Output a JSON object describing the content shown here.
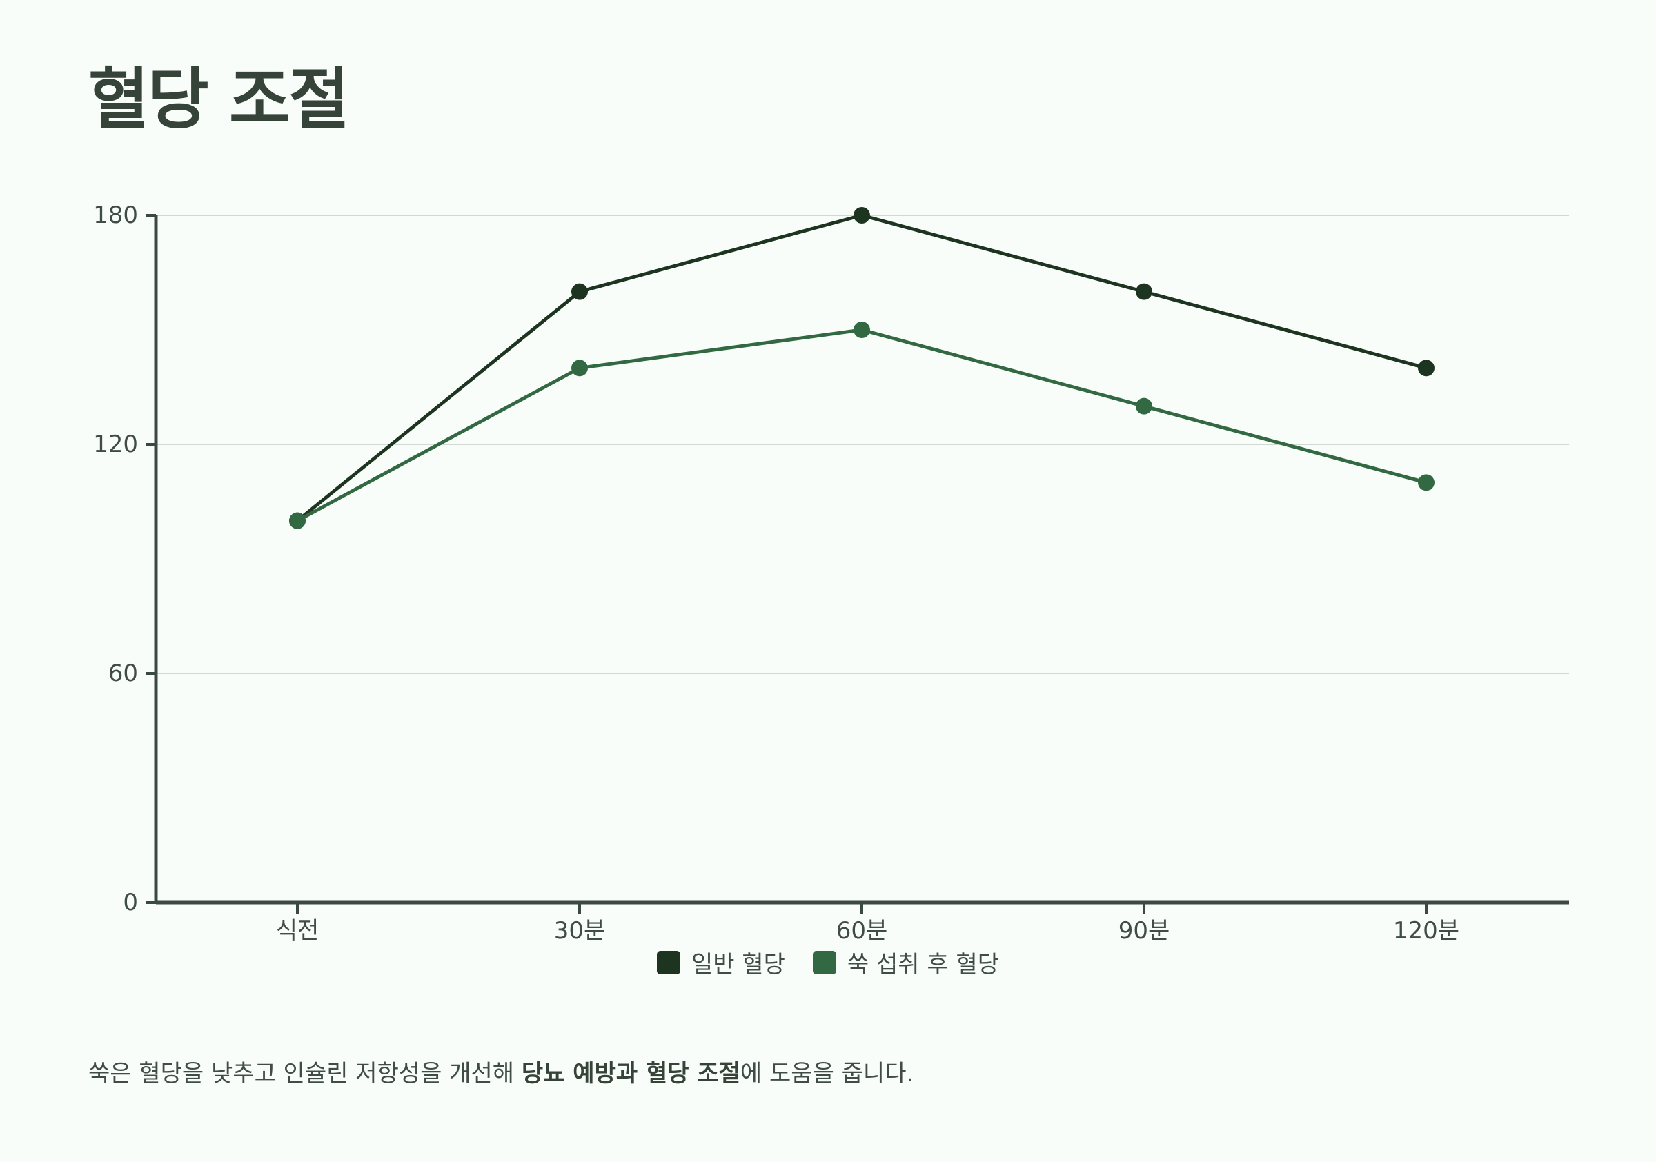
{
  "title": "혈당 조절",
  "chart_data": {
    "type": "line",
    "categories": [
      "식전",
      "30분",
      "60분",
      "90분",
      "120분"
    ],
    "series": [
      {
        "name": "일반 혈당",
        "values": [
          100,
          160,
          180,
          160,
          140
        ],
        "color": "#1c3420"
      },
      {
        "name": "쑥 섭취 후 혈당",
        "values": [
          100,
          140,
          150,
          130,
          110
        ],
        "color": "#326842"
      }
    ],
    "yticks": [
      0,
      60,
      120,
      180
    ],
    "ylim": [
      0,
      180
    ],
    "grid": true,
    "legend_position": "bottom-center",
    "xlabel": "",
    "ylabel": ""
  },
  "caption": {
    "before": "쑥은 혈당을 낮추고 인슐린 저항성을 개선해 ",
    "bold": "당뇨 예방과 혈당 조절",
    "after": "에 도움을 줍니다."
  },
  "colors": {
    "background": "#f9fdf9",
    "axis": "#3b4a41",
    "grid": "#d2d8d3"
  }
}
